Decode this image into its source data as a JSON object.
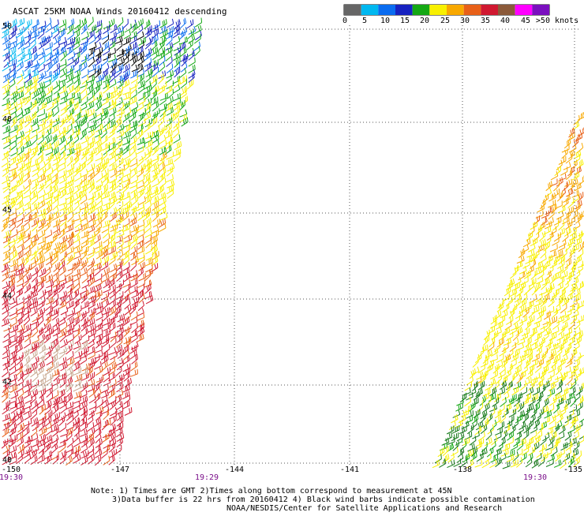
{
  "title": "ASCAT 25KM NOAA Winds 20160412 descending",
  "colorbar": {
    "ticks": [
      "0",
      "5",
      "10",
      "15",
      "20",
      "25",
      "30",
      "35",
      "40",
      "45",
      ">50 knots"
    ],
    "colors": [
      "#666666",
      "#00b8f0",
      "#0a6cf0",
      "#1722c0",
      "#14a814",
      "#f8f000",
      "#f8a800",
      "#e86018",
      "#d01830",
      "#8b5a3a",
      "#ff00ff",
      "#7a0fbf"
    ]
  },
  "lat_labels": [
    "50",
    "48",
    "45",
    "44",
    "42",
    "40"
  ],
  "lon_labels": [
    "-150",
    "-147",
    "-144",
    "-141",
    "-138",
    "-135"
  ],
  "time_labels": [
    "19:30",
    "19:29",
    "19:30"
  ],
  "notes": [
    "Note: 1) Times are GMT 2)Times along bottom correspond to measurement at 45N",
    "3)Data buffer is 22 hrs from 20160412 4) Black wind barbs indicate possible contamination",
    "NOAA/NESDIS/Center for Satellite Applications and Research"
  ]
}
